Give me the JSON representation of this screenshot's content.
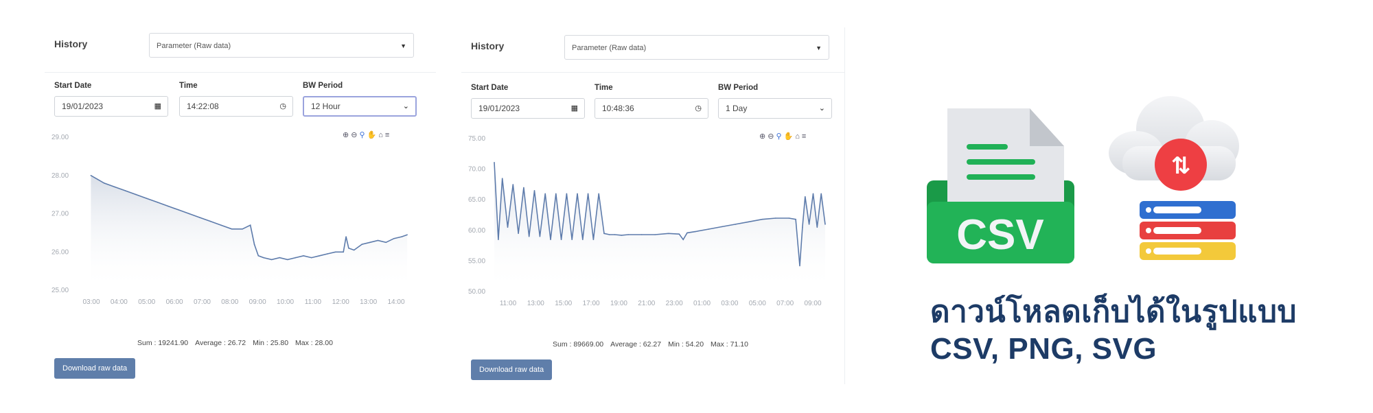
{
  "panels": [
    {
      "history_label": "History",
      "parameter_select": "Parameter (Raw data)",
      "start_date_label": "Start Date",
      "start_date": "19/01/2023",
      "time_label": "Time",
      "time": "14:22:08",
      "bw_period_label": "BW Period",
      "bw_period": "12 Hour",
      "stats": {
        "sum": "Sum : 19241.90",
        "average": "Average : 26.72",
        "min": "Min : 25.80",
        "max": "Max : 28.00"
      },
      "download_label": "Download raw data"
    },
    {
      "history_label": "History",
      "parameter_select": "Parameter (Raw data)",
      "start_date_label": "Start Date",
      "start_date": "19/01/2023",
      "time_label": "Time",
      "time": "10:48:36",
      "bw_period_label": "BW Period",
      "bw_period": "1 Day",
      "stats": {
        "sum": "Sum : 89669.00",
        "average": "Average : 62.27",
        "min": "Min : 54.20",
        "max": "Max : 71.10"
      },
      "download_label": "Download raw data"
    }
  ],
  "icons": {
    "file": "csv-file-icon",
    "cloud": "cloud-sync-icon",
    "server": "server-stack-icon",
    "csv_label": "CSV"
  },
  "headline": {
    "line1": "ดาวน์โหลดเก็บได้ในรูปแบบ",
    "line2": "CSV, PNG, SVG"
  },
  "colors": {
    "line": "#5d7bab",
    "button": "#5f7eaa",
    "headline": "#1d3b66",
    "csv_green": "#20b157",
    "sync_red": "#ee3f43"
  },
  "chart_data": [
    {
      "type": "area",
      "y_ticks": [
        "29.00",
        "28.00",
        "27.00",
        "26.00",
        "25.00"
      ],
      "ylim": [
        25.0,
        29.0
      ],
      "x_ticks": [
        "03:00",
        "04:00",
        "05:00",
        "06:00",
        "07:00",
        "08:00",
        "09:00",
        "10:00",
        "11:00",
        "12:00",
        "13:00",
        "14:00"
      ],
      "x": [
        2.5,
        2.75,
        3.0,
        3.4,
        3.8,
        4.2,
        4.6,
        5.0,
        5.4,
        5.8,
        6.2,
        6.6,
        7.0,
        7.4,
        7.8,
        8.2,
        8.5,
        8.65,
        8.8,
        9.0,
        9.3,
        9.6,
        9.9,
        10.2,
        10.5,
        10.8,
        11.1,
        11.4,
        11.7,
        12.0,
        12.1,
        12.2,
        12.4,
        12.7,
        13.0,
        13.3,
        13.6,
        13.9,
        14.2,
        14.4
      ],
      "values": [
        28.0,
        27.9,
        27.8,
        27.7,
        27.6,
        27.5,
        27.4,
        27.3,
        27.2,
        27.1,
        27.0,
        26.9,
        26.8,
        26.7,
        26.6,
        26.6,
        26.7,
        26.2,
        25.9,
        25.85,
        25.8,
        25.85,
        25.8,
        25.85,
        25.9,
        25.85,
        25.9,
        25.95,
        26.0,
        26.0,
        26.4,
        26.1,
        26.05,
        26.2,
        26.25,
        26.3,
        26.25,
        26.35,
        26.4,
        26.45
      ]
    },
    {
      "type": "area",
      "y_ticks": [
        "75.00",
        "70.00",
        "65.00",
        "60.00",
        "55.00",
        "50.00"
      ],
      "ylim": [
        50.0,
        75.0
      ],
      "x_ticks": [
        "11:00",
        "13:00",
        "15:00",
        "17:00",
        "19:00",
        "21:00",
        "23:00",
        "01:00",
        "03:00",
        "05:00",
        "07:00",
        "09:00"
      ],
      "x": [
        10.0,
        10.3,
        10.6,
        11.0,
        11.4,
        11.8,
        12.2,
        12.6,
        13.0,
        13.4,
        13.8,
        14.2,
        14.6,
        15.0,
        15.4,
        15.8,
        16.2,
        16.6,
        17.0,
        17.4,
        17.8,
        18.2,
        18.6,
        19.0,
        19.5,
        20.0,
        21.0,
        22.0,
        23.0,
        23.8,
        24.1,
        24.4,
        25.0,
        26.0,
        27.0,
        28.0,
        29.0,
        30.0,
        31.0,
        32.0,
        32.5,
        32.8,
        33.0,
        33.2,
        33.5,
        33.8,
        34.1,
        34.4,
        34.7
      ],
      "values": [
        71.1,
        58.5,
        68.5,
        60.5,
        67.5,
        59.5,
        67.0,
        59.0,
        66.5,
        59.0,
        66.0,
        58.5,
        66.0,
        58.5,
        66.0,
        58.5,
        66.0,
        58.5,
        66.0,
        58.5,
        66.0,
        59.5,
        59.3,
        59.3,
        59.2,
        59.3,
        59.3,
        59.3,
        59.5,
        59.4,
        58.5,
        59.6,
        59.8,
        60.2,
        60.6,
        61.0,
        61.4,
        61.8,
        62.0,
        62.0,
        61.8,
        54.2,
        60.5,
        65.5,
        61.0,
        66.0,
        60.5,
        66.0,
        61.0
      ]
    }
  ]
}
